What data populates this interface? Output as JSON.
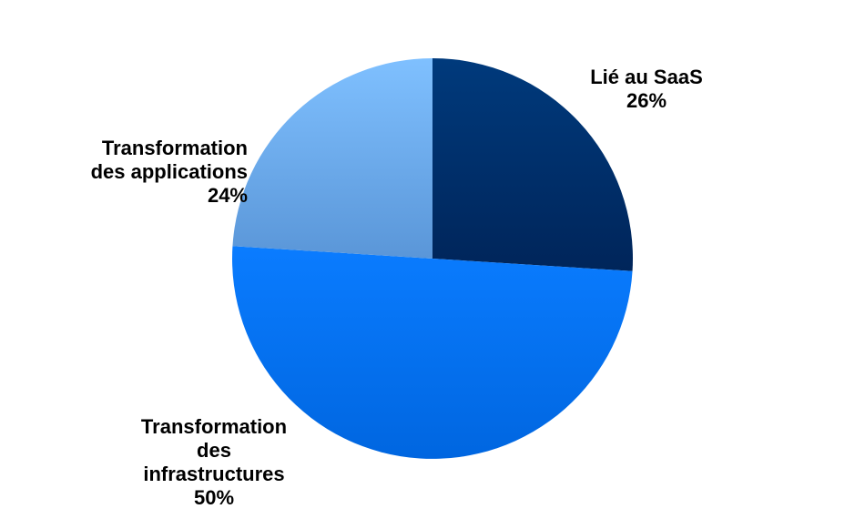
{
  "chart_data": {
    "type": "pie",
    "title": "",
    "start_angle_deg": 0,
    "direction": "clockwise",
    "slices": [
      {
        "name": "Lié au SaaS",
        "label_lines": [
          "Lié au SaaS"
        ],
        "value": 26,
        "value_label": "26%",
        "color": "#003A7C",
        "gradient_to": "#00255A"
      },
      {
        "name": "Transformation des infrastructures",
        "label_lines": [
          "Transformation",
          "des",
          "infrastructures"
        ],
        "value": 50,
        "value_label": "50%",
        "color": "#0A7CFF",
        "gradient_to": "#0066E0"
      },
      {
        "name": "Transformation des applications",
        "label_lines": [
          "Transformation",
          "des applications"
        ],
        "value": 24,
        "value_label": "24%",
        "color": "#7FC0FF",
        "gradient_to": "#5A96D8"
      }
    ],
    "legend": "none",
    "label_placement": "outside"
  }
}
